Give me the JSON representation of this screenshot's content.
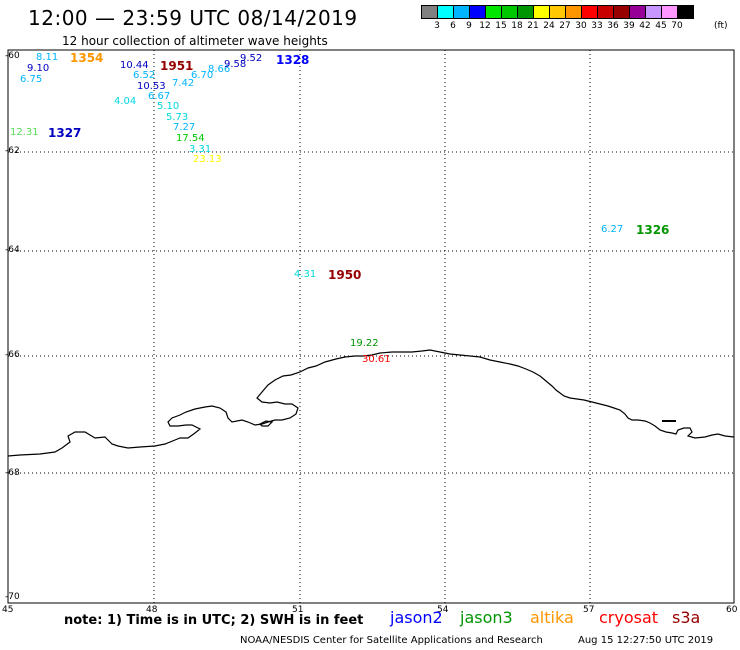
{
  "header": {
    "title": "12:00 — 23:59 UTC 08/14/2019",
    "subtitle": "12 hour collection of altimeter wave heights"
  },
  "colorbar": {
    "colors": [
      "#808080",
      "#00ffff",
      "#00b4ff",
      "#0000ff",
      "#00e600",
      "#00c800",
      "#009600",
      "#ffff00",
      "#ffc800",
      "#ff9600",
      "#ff0000",
      "#c80000",
      "#960000",
      "#960096",
      "#c896ff",
      "#ff96ff",
      "#000000"
    ],
    "labels": [
      "3",
      "6",
      "9",
      "12",
      "15",
      "18",
      "21",
      "24",
      "27",
      "30",
      "33",
      "36",
      "39",
      "42",
      "45",
      "70"
    ],
    "unit": "(ft)"
  },
  "axes": {
    "y_labels": [
      "-60",
      "-62",
      "-64",
      "-66",
      "-68",
      "-70"
    ],
    "x_labels": [
      "45",
      "48",
      "51",
      "54",
      "57",
      "60"
    ]
  },
  "observations": [
    {
      "text": "8.11",
      "color": "#00b4ff"
    },
    {
      "text": "9.10",
      "color": "#0000c0"
    },
    {
      "text": "6.75",
      "color": "#00b4ff"
    },
    {
      "text": "1354",
      "color": "#ff9600"
    },
    {
      "text": "10.44",
      "color": "#0000c0"
    },
    {
      "text": "6.52",
      "color": "#00b4ff"
    },
    {
      "text": "10.53",
      "color": "#0000c0"
    },
    {
      "text": "4.04",
      "color": "#00d8e0"
    },
    {
      "text": "6.67",
      "color": "#00b4ff"
    },
    {
      "text": "5.10",
      "color": "#00d8e0"
    },
    {
      "text": "5.73",
      "color": "#00d8e0"
    },
    {
      "text": "7.27",
      "color": "#00b4ff"
    },
    {
      "text": "17.54",
      "color": "#00c800"
    },
    {
      "text": "3.31",
      "color": "#00d8e0"
    },
    {
      "text": "23.13",
      "color": "#ffff00"
    },
    {
      "text": "1951",
      "color": "#960000"
    },
    {
      "text": "7.42",
      "color": "#00b4ff"
    },
    {
      "text": "6.70",
      "color": "#00b4ff"
    },
    {
      "text": "8.66",
      "color": "#00b4ff"
    },
    {
      "text": "9.58",
      "color": "#0000c0"
    },
    {
      "text": "9.52",
      "color": "#0000c0"
    },
    {
      "text": "1328",
      "color": "#0000ff"
    },
    {
      "text": "12.31",
      "color": "#55dd55"
    },
    {
      "text": "1327",
      "color": "#0000c0"
    },
    {
      "text": "6.27",
      "color": "#00b4ff"
    },
    {
      "text": "1326",
      "color": "#009600"
    },
    {
      "text": "4.31",
      "color": "#00d8e0"
    },
    {
      "text": "1950",
      "color": "#960000"
    },
    {
      "text": "19.22",
      "color": "#009600"
    },
    {
      "text": "30.61",
      "color": "#ff0000"
    }
  ],
  "note": "note:  1) Time is in UTC;  2) SWH is in feet",
  "legend": [
    {
      "name": "jason2",
      "color": "#0000ff"
    },
    {
      "name": "jason3",
      "color": "#009600"
    },
    {
      "name": "altika",
      "color": "#ff9600"
    },
    {
      "name": "cryosat",
      "color": "#ff0000"
    },
    {
      "name": "s3a",
      "color": "#960000"
    }
  ],
  "footer": {
    "credit": "NOAA/NESDIS Center for Satellite Applications and Research",
    "generated": "Aug 15 12:27:50 UTC 2019"
  }
}
